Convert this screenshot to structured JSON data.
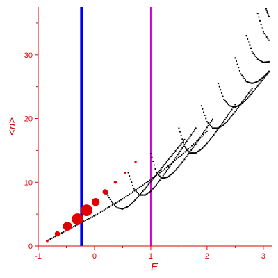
{
  "chart_data": {
    "type": "scatter",
    "xlabel": "E",
    "ylabel": "<n>",
    "xlim": [
      -1,
      3.15
    ],
    "ylim": [
      0,
      37.5
    ],
    "x_ticks": [
      -1,
      0,
      1,
      2,
      3
    ],
    "y_ticks": [
      0,
      10,
      20,
      30
    ],
    "x_tick_labels": [
      "-1",
      "0",
      "1",
      "2",
      "3"
    ],
    "y_tick_labels": [
      "0",
      "10",
      "20",
      "30"
    ],
    "grid": false,
    "colors": {
      "axis": "#e00000",
      "highlight_points": "#e00000",
      "background_points": "#000000",
      "line_1": "#0000ee",
      "line_2": "#cc00cc"
    },
    "vertical_lines": [
      {
        "x": -0.23,
        "color": "#0000ee"
      },
      {
        "x": 1.0,
        "color": "#cc00cc"
      }
    ],
    "highlight_points": [
      {
        "x": -0.84,
        "y": 0.8,
        "w": 0.05
      },
      {
        "x": -0.66,
        "y": 1.9,
        "w": 0.1
      },
      {
        "x": -0.48,
        "y": 3.1,
        "w": 0.17
      },
      {
        "x": -0.3,
        "y": 4.2,
        "w": 0.22
      },
      {
        "x": -0.14,
        "y": 5.6,
        "w": 0.22
      },
      {
        "x": 0.02,
        "y": 6.9,
        "w": 0.15
      },
      {
        "x": 0.19,
        "y": 8.5,
        "w": 0.1
      },
      {
        "x": 0.37,
        "y": 10.0,
        "w": 0.06
      },
      {
        "x": 0.55,
        "y": 11.5,
        "w": 0.04
      },
      {
        "x": 0.73,
        "y": 13.2,
        "w": 0.025
      }
    ],
    "series": [
      {
        "x": [
          -0.84,
          -0.7,
          -0.55,
          -0.4,
          -0.25,
          -0.1,
          0.05,
          0.2,
          0.35,
          0.5,
          0.65,
          0.8,
          0.95,
          1.1,
          1.25,
          1.4,
          1.55,
          1.7,
          1.85,
          2.0
        ],
        "y": [
          0.8,
          1.5,
          2.2,
          2.9,
          3.6,
          4.3,
          5.0,
          5.8,
          6.6,
          7.4,
          8.3,
          9.2,
          10.1,
          11.1,
          12.1,
          13.2,
          14.3,
          15.5,
          16.7,
          18.0
        ]
      },
      {
        "x": [
          0.2,
          0.3,
          0.4,
          0.5,
          0.6,
          0.7,
          0.8,
          0.9,
          1.0,
          1.1,
          1.2,
          1.3,
          1.4,
          1.5,
          1.6
        ],
        "y": [
          8.5,
          7.0,
          6.0,
          5.8,
          6.2,
          7.0,
          8.0,
          9.0,
          10.1,
          11.2,
          12.3,
          13.4,
          14.5,
          15.6,
          16.7
        ]
      },
      {
        "x": [
          0.6,
          0.7,
          0.8,
          0.9,
          1.0,
          1.1,
          1.2,
          1.3,
          1.4,
          1.5,
          1.6,
          1.7,
          1.8
        ],
        "y": [
          11.5,
          9.0,
          8.0,
          8.0,
          8.6,
          9.6,
          10.8,
          12.0,
          13.3,
          14.6,
          15.9,
          17.2,
          18.5
        ]
      },
      {
        "x": [
          1.0,
          1.1,
          1.2,
          1.3,
          1.4,
          1.5,
          1.6,
          1.7,
          1.8,
          1.9,
          2.0,
          2.1
        ],
        "y": [
          14.5,
          11.5,
          10.6,
          10.8,
          11.5,
          12.5,
          13.6,
          14.8,
          16.0,
          17.3,
          18.6,
          19.9
        ]
      },
      {
        "x": [
          1.5,
          1.6,
          1.7,
          1.8,
          1.9,
          2.0,
          2.1,
          2.2,
          2.3,
          2.4,
          2.5
        ],
        "y": [
          18.5,
          15.6,
          14.6,
          14.6,
          15.2,
          16.1,
          17.2,
          18.4,
          19.6,
          20.9,
          22.2
        ]
      },
      {
        "x": [
          1.9,
          2.0,
          2.1,
          2.2,
          2.3,
          2.4,
          2.5,
          2.6,
          2.7,
          2.8
        ],
        "y": [
          22.0,
          19.5,
          18.5,
          18.5,
          19.0,
          20.0,
          21.1,
          22.3,
          23.5,
          24.7
        ]
      },
      {
        "x": [
          2.2,
          2.3,
          2.4,
          2.5,
          2.6,
          2.7,
          2.8,
          2.9,
          3.0,
          3.1
        ],
        "y": [
          25.5,
          23.0,
          22.0,
          21.8,
          22.2,
          23.0,
          24.0,
          25.1,
          26.2,
          27.3
        ]
      },
      {
        "x": [
          2.5,
          2.6,
          2.7,
          2.8,
          2.9,
          3.0,
          3.1
        ],
        "y": [
          29.5,
          27.0,
          25.8,
          25.5,
          25.8,
          26.5,
          27.4
        ]
      },
      {
        "x": [
          2.7,
          2.8,
          2.9,
          3.0,
          3.1
        ],
        "y": [
          33.0,
          30.5,
          29.3,
          28.8,
          28.9
        ]
      },
      {
        "x": [
          2.9,
          3.0,
          3.1
        ],
        "y": [
          36.5,
          33.6,
          32.3
        ]
      },
      {
        "x": [
          3.05,
          3.1
        ],
        "y": [
          37.2,
          36.0
        ]
      }
    ]
  }
}
